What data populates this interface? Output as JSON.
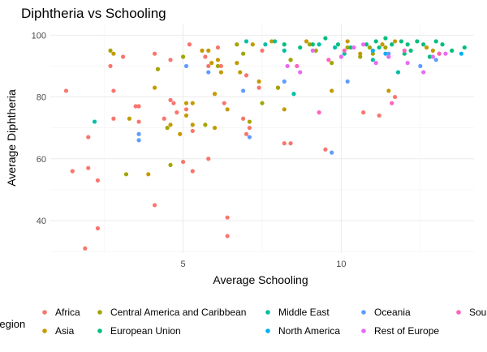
{
  "chart_data": {
    "type": "scatter",
    "title": "Diphtheria vs Schooling",
    "xlabel": "Average Schooling",
    "ylabel": "Average Diphtheria",
    "xlim": [
      0.8,
      14.2
    ],
    "ylim": [
      29.5,
      103.5
    ],
    "x_ticks": [
      5,
      10
    ],
    "y_ticks": [
      40,
      60,
      80,
      100
    ],
    "grid": true,
    "legend_title": "Region",
    "legend_position": "bottom",
    "colors": {
      "Africa": "#F8766D",
      "Asia": "#C49A00",
      "Central America and Caribbean": "#A3A500",
      "European Union": "#00BF7D",
      "Middle East": "#00BFA5",
      "North America": "#00B0F6",
      "Oceania": "#619CFF",
      "Rest of Europe": "#E76BF3",
      "South America": "#FF62BC"
    },
    "legend_entries": [
      "Africa",
      "Asia",
      "Central America and Caribbean",
      "European Union",
      "Middle East",
      "North America",
      "Oceania",
      "Rest of Europe",
      "South America"
    ],
    "legend_labels_shown": [
      "Africa",
      "Asia",
      "Central America and Caribbean",
      "European Union",
      "Middle East",
      "North America",
      "Oceania",
      "Rest of Europe",
      "Sou"
    ],
    "series": [
      {
        "name": "Africa",
        "points": [
          [
            1.3,
            82
          ],
          [
            1.5,
            56
          ],
          [
            1.9,
            31
          ],
          [
            2.0,
            67
          ],
          [
            2.0,
            57
          ],
          [
            2.3,
            53
          ],
          [
            2.3,
            37.5
          ],
          [
            2.7,
            90
          ],
          [
            2.8,
            82
          ],
          [
            2.8,
            73
          ],
          [
            3.1,
            93
          ],
          [
            3.5,
            77
          ],
          [
            3.6,
            77
          ],
          [
            3.6,
            72
          ],
          [
            4.1,
            94
          ],
          [
            4.1,
            45
          ],
          [
            4.4,
            73
          ],
          [
            4.6,
            92
          ],
          [
            4.6,
            79
          ],
          [
            4.7,
            78
          ],
          [
            4.8,
            75
          ],
          [
            5.0,
            59
          ],
          [
            5.1,
            76
          ],
          [
            5.2,
            97
          ],
          [
            5.3,
            69
          ],
          [
            5.3,
            56
          ],
          [
            5.7,
            93
          ],
          [
            5.8,
            60
          ],
          [
            5.8,
            90
          ],
          [
            6.1,
            96
          ],
          [
            6.2,
            90
          ],
          [
            6.3,
            78
          ],
          [
            6.4,
            41
          ],
          [
            6.4,
            35
          ],
          [
            6.9,
            73
          ],
          [
            7.0,
            87
          ],
          [
            7.0,
            68
          ],
          [
            7.1,
            70
          ],
          [
            7.4,
            83
          ],
          [
            7.5,
            95
          ],
          [
            8.2,
            65
          ],
          [
            8.4,
            65
          ],
          [
            9.5,
            63
          ],
          [
            10.7,
            75
          ],
          [
            11.2,
            74
          ],
          [
            11.7,
            80
          ]
        ]
      },
      {
        "name": "Asia",
        "points": [
          [
            2.8,
            94
          ],
          [
            3.3,
            73
          ],
          [
            3.9,
            55
          ],
          [
            4.1,
            83
          ],
          [
            4.6,
            71
          ],
          [
            4.9,
            68
          ],
          [
            5.1,
            74
          ],
          [
            5.1,
            78
          ],
          [
            5.3,
            78
          ],
          [
            5.3,
            71
          ],
          [
            5.6,
            95
          ],
          [
            5.8,
            95
          ],
          [
            5.9,
            91
          ],
          [
            6.0,
            81
          ],
          [
            6.0,
            70
          ],
          [
            6.1,
            92
          ],
          [
            6.2,
            88
          ],
          [
            6.4,
            76
          ],
          [
            6.7,
            91
          ],
          [
            6.8,
            88
          ],
          [
            7.2,
            97
          ],
          [
            7.4,
            85
          ],
          [
            7.8,
            98
          ],
          [
            8.0,
            83
          ],
          [
            8.2,
            76
          ],
          [
            8.4,
            92
          ],
          [
            8.9,
            98
          ],
          [
            9.7,
            82
          ],
          [
            10.2,
            98
          ],
          [
            10.6,
            94
          ],
          [
            11.3,
            97
          ],
          [
            11.5,
            82
          ],
          [
            11.7,
            98
          ],
          [
            12.7,
            96
          ],
          [
            12.9,
            95
          ],
          [
            13.1,
            94
          ]
        ]
      },
      {
        "name": "Central America and Caribbean",
        "points": [
          [
            2.7,
            95
          ],
          [
            3.2,
            55
          ],
          [
            4.2,
            89
          ],
          [
            4.5,
            70
          ],
          [
            4.6,
            58
          ],
          [
            5.0,
            93
          ],
          [
            5.7,
            71
          ],
          [
            6.1,
            90
          ],
          [
            6.7,
            97
          ],
          [
            6.9,
            94
          ],
          [
            7.1,
            72
          ],
          [
            7.5,
            78
          ],
          [
            8.0,
            83
          ],
          [
            8.4,
            92
          ],
          [
            9.0,
            97
          ],
          [
            9.2,
            95
          ],
          [
            9.7,
            91
          ],
          [
            10.2,
            96
          ],
          [
            10.6,
            93
          ],
          [
            10.9,
            96
          ],
          [
            11.0,
            94
          ],
          [
            11.4,
            96
          ]
        ]
      },
      {
        "name": "European Union",
        "points": [
          [
            8.2,
            97
          ],
          [
            8.7,
            96
          ],
          [
            9.1,
            97
          ],
          [
            9.5,
            99
          ],
          [
            9.9,
            97
          ],
          [
            10.3,
            96
          ],
          [
            10.8,
            97
          ],
          [
            11.1,
            98
          ],
          [
            11.4,
            99
          ],
          [
            11.6,
            97
          ],
          [
            11.9,
            98
          ],
          [
            12.1,
            97
          ],
          [
            12.2,
            95
          ],
          [
            12.4,
            98
          ],
          [
            12.6,
            97
          ],
          [
            12.8,
            93
          ],
          [
            13.0,
            98
          ],
          [
            13.2,
            97
          ],
          [
            13.5,
            95
          ],
          [
            13.9,
            96
          ],
          [
            12.0,
            94
          ],
          [
            11.2,
            96
          ]
        ]
      },
      {
        "name": "Middle East",
        "points": [
          [
            2.2,
            72
          ],
          [
            7.0,
            98
          ],
          [
            7.6,
            97
          ],
          [
            7.9,
            98
          ],
          [
            8.2,
            95
          ],
          [
            8.5,
            81
          ],
          [
            9.3,
            97
          ],
          [
            9.8,
            96
          ],
          [
            10.1,
            94
          ],
          [
            11.0,
            92
          ],
          [
            11.8,
            88
          ]
        ]
      },
      {
        "name": "North America",
        "points": [
          [
            11.0,
            95
          ],
          [
            11.4,
            94
          ],
          [
            13.8,
            94
          ]
        ]
      },
      {
        "name": "Oceania",
        "points": [
          [
            3.6,
            68
          ],
          [
            3.6,
            66
          ],
          [
            5.1,
            90
          ],
          [
            5.8,
            88
          ],
          [
            6.9,
            82
          ],
          [
            7.1,
            67
          ],
          [
            8.2,
            85
          ],
          [
            9.7,
            62
          ],
          [
            10.2,
            85
          ],
          [
            11.5,
            94
          ],
          [
            12.5,
            90
          ],
          [
            13.0,
            92
          ]
        ]
      },
      {
        "name": "Rest of Europe",
        "points": [
          [
            8.3,
            90
          ],
          [
            8.7,
            88
          ],
          [
            9.1,
            95
          ],
          [
            10.0,
            93
          ],
          [
            10.4,
            96
          ],
          [
            10.7,
            97
          ],
          [
            11.1,
            91
          ],
          [
            11.5,
            93
          ],
          [
            12.1,
            91
          ],
          [
            12.6,
            88
          ],
          [
            12.9,
            93
          ],
          [
            13.3,
            94
          ]
        ]
      },
      {
        "name": "South America",
        "points": [
          [
            8.6,
            90
          ],
          [
            9.3,
            75
          ],
          [
            9.6,
            92
          ],
          [
            10.1,
            95
          ],
          [
            11.6,
            78
          ],
          [
            12.0,
            95
          ],
          [
            13.1,
            94
          ]
        ]
      }
    ]
  }
}
